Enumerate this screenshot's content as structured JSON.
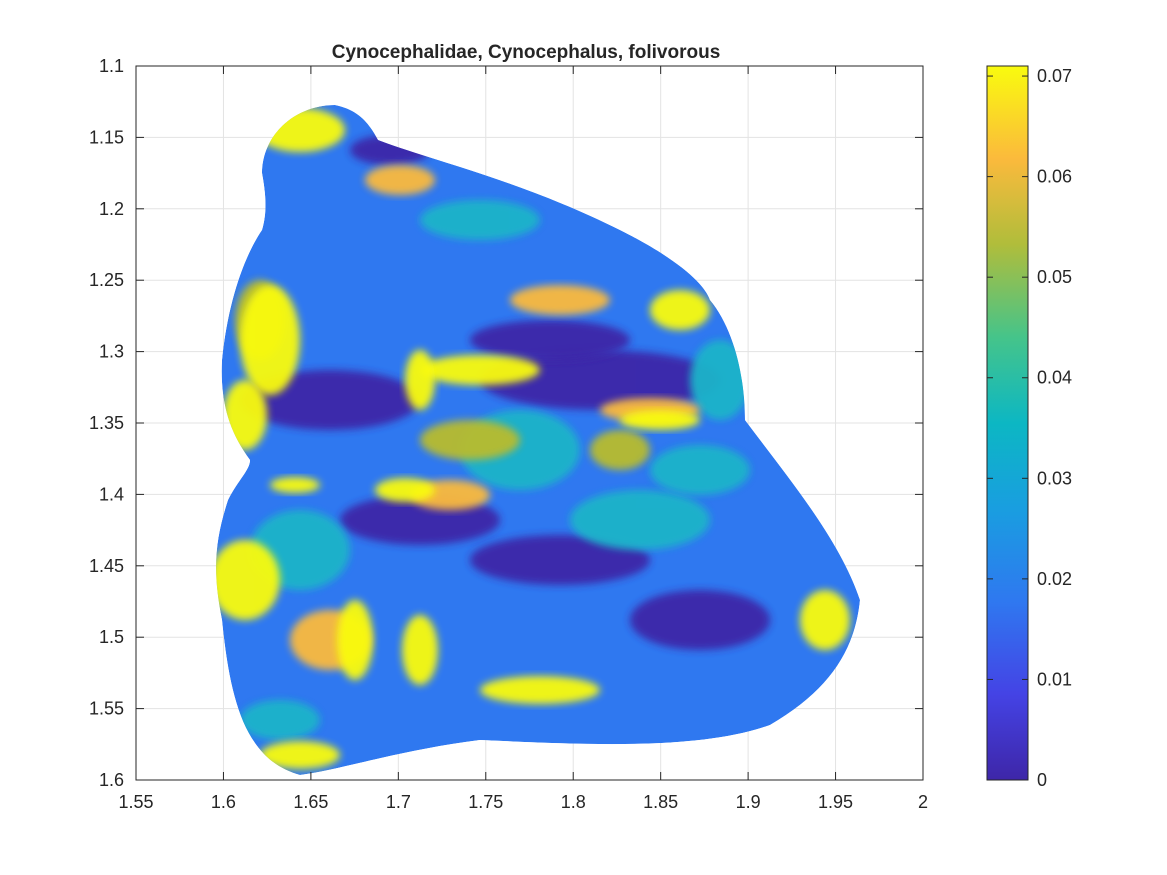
{
  "chart_data": {
    "type": "heatmap",
    "title": "Cynocephalidae, Cynocephalus, folivorous",
    "xlabel": "",
    "ylabel": "",
    "xlim": [
      1.55,
      2
    ],
    "ylim": [
      1.1,
      1.6
    ],
    "y_reversed": true,
    "grid": true,
    "x_ticks": [
      "1.55",
      "1.6",
      "1.65",
      "1.7",
      "1.75",
      "1.8",
      "1.85",
      "1.9",
      "1.95",
      "2"
    ],
    "y_ticks": [
      "1.1",
      "1.15",
      "1.2",
      "1.25",
      "1.3",
      "1.35",
      "1.4",
      "1.45",
      "1.5",
      "1.55",
      "1.6"
    ],
    "colorbar": {
      "range": [
        0,
        0.071
      ],
      "ticks": [
        "0",
        "0.01",
        "0.02",
        "0.03",
        "0.04",
        "0.05",
        "0.06",
        "0.07"
      ],
      "colormap": "parula"
    },
    "colors": {
      "low": "#3e26a8",
      "mid_low": "#2f78f0",
      "mid": "#1ab4c9",
      "mid_high": "#b8bc2d",
      "high": "#f9fb0e",
      "orange": "#fbba3c"
    }
  }
}
